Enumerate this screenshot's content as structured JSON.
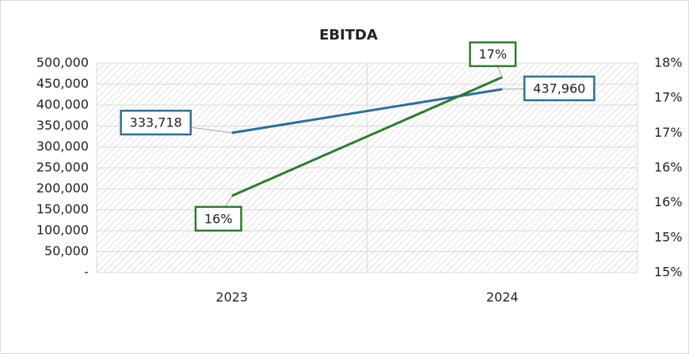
{
  "chart_data": {
    "type": "line",
    "title": "EBITDA",
    "categories": [
      "2023",
      "2024"
    ],
    "series": [
      {
        "color": "#2f6e94",
        "values": [
          333718,
          437960
        ],
        "value_labels": [
          "333,718",
          "437,960"
        ],
        "axis": "y"
      },
      {
        "color": "#2e7a2e",
        "values": [
          15.6,
          17.3
        ],
        "value_labels": [
          "16%",
          "17%"
        ],
        "axis": "y2"
      }
    ],
    "ylim": [
      0,
      500000
    ],
    "yticks": [
      {
        "value": 0,
        "label": "-"
      },
      {
        "value": 50000,
        "label": "50,000"
      },
      {
        "value": 100000,
        "label": "100,000"
      },
      {
        "value": 150000,
        "label": "150,000"
      },
      {
        "value": 200000,
        "label": "200,000"
      },
      {
        "value": 250000,
        "label": "250,000"
      },
      {
        "value": 300000,
        "label": "300,000"
      },
      {
        "value": 350000,
        "label": "350,000"
      },
      {
        "value": 400000,
        "label": "400,000"
      },
      {
        "value": 450000,
        "label": "450,000"
      },
      {
        "value": 500000,
        "label": "500,000"
      }
    ],
    "y2lim": [
      14.5,
      17.5
    ],
    "y2ticks": [
      {
        "value": 14.5,
        "label": "15%"
      },
      {
        "value": 15,
        "label": "15%"
      },
      {
        "value": 15.5,
        "label": "16%"
      },
      {
        "value": 16,
        "label": "16%"
      },
      {
        "value": 16.5,
        "label": "17%"
      },
      {
        "value": 17,
        "label": "17%"
      },
      {
        "value": 17.5,
        "label": "18%"
      }
    ],
    "grid": true
  }
}
